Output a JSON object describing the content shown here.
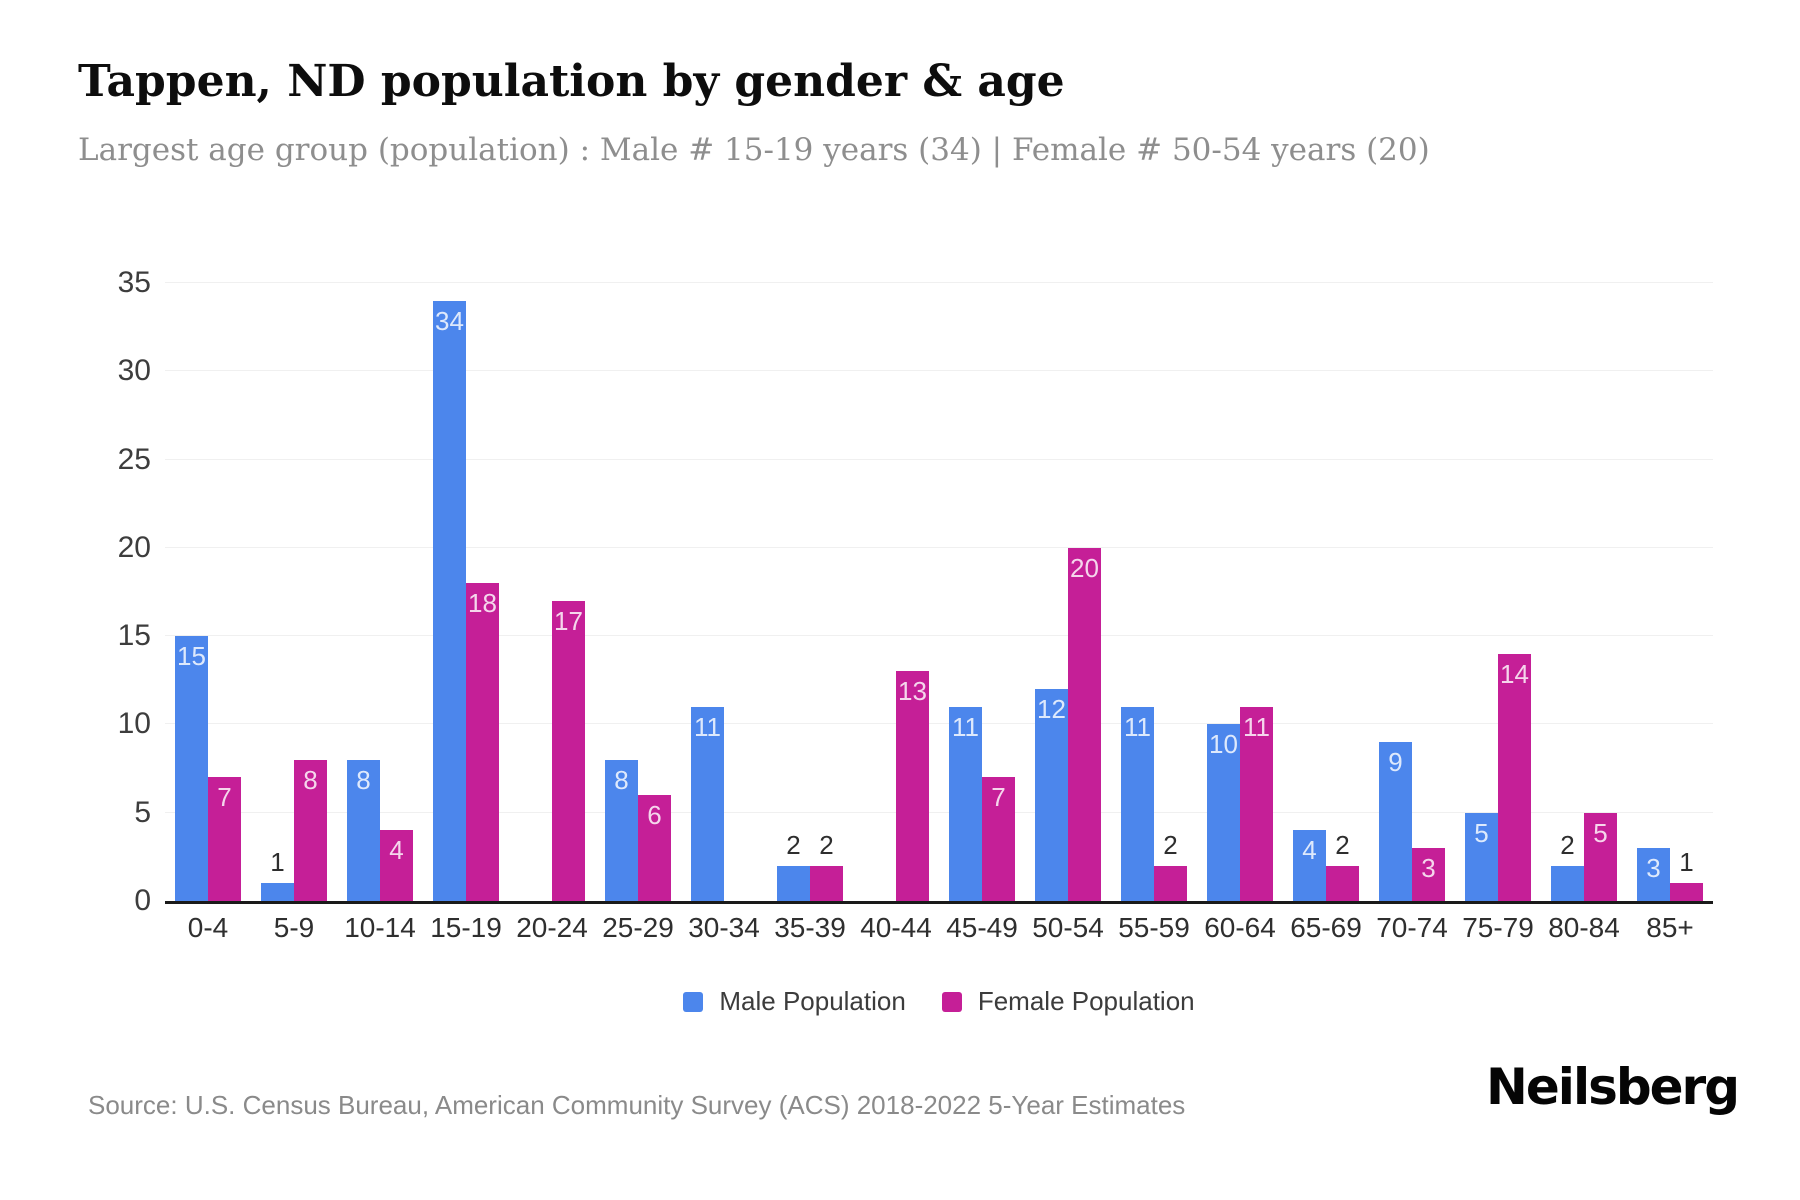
{
  "header": {
    "title": "Tappen, ND population by gender & age",
    "subtitle": "Largest age group (population) : Male # 15-19 years (34) | Female # 50-54 years (20)"
  },
  "footer": {
    "source": "Source: U.S. Census Bureau, American Community Survey (ACS) 2018-2022 5-Year Estimates",
    "logo": "Neilsberg"
  },
  "chart_data": {
    "type": "bar",
    "title": "Tappen, ND population by gender & age",
    "subtitle": "Largest age group (population) : Male # 15-19 years (34) | Female # 50-54 years (20)",
    "categories": [
      "0-4",
      "5-9",
      "10-14",
      "15-19",
      "20-24",
      "25-29",
      "30-34",
      "35-39",
      "40-44",
      "45-49",
      "50-54",
      "55-59",
      "60-64",
      "65-69",
      "70-74",
      "75-79",
      "80-84",
      "85+"
    ],
    "series": [
      {
        "name": "Male Population",
        "color": "#4c86ec",
        "values": [
          15,
          1,
          8,
          34,
          0,
          8,
          11,
          2,
          0,
          11,
          12,
          11,
          10,
          4,
          9,
          5,
          2,
          3
        ]
      },
      {
        "name": "Female Population",
        "color": "#c51f97",
        "values": [
          7,
          8,
          4,
          18,
          17,
          6,
          0,
          2,
          13,
          7,
          20,
          2,
          11,
          2,
          3,
          14,
          5,
          1
        ]
      }
    ],
    "xlabel": "",
    "ylabel": "",
    "ylim": [
      0,
      35
    ],
    "yticks": [
      0,
      5,
      10,
      15,
      20,
      25,
      30,
      35
    ],
    "grid": "horizontal",
    "legend_position": "bottom",
    "value_label_inside_min": 3,
    "colors": {
      "male": "#4c86ec",
      "female": "#c51f97",
      "axis_line": "#1a1a1a",
      "gridline": "#f0f0f0",
      "tick_text": "#3d3d3d",
      "label_inside": "rgba(255,255,255,0.82)",
      "label_outside": "#2e2e2e"
    }
  }
}
